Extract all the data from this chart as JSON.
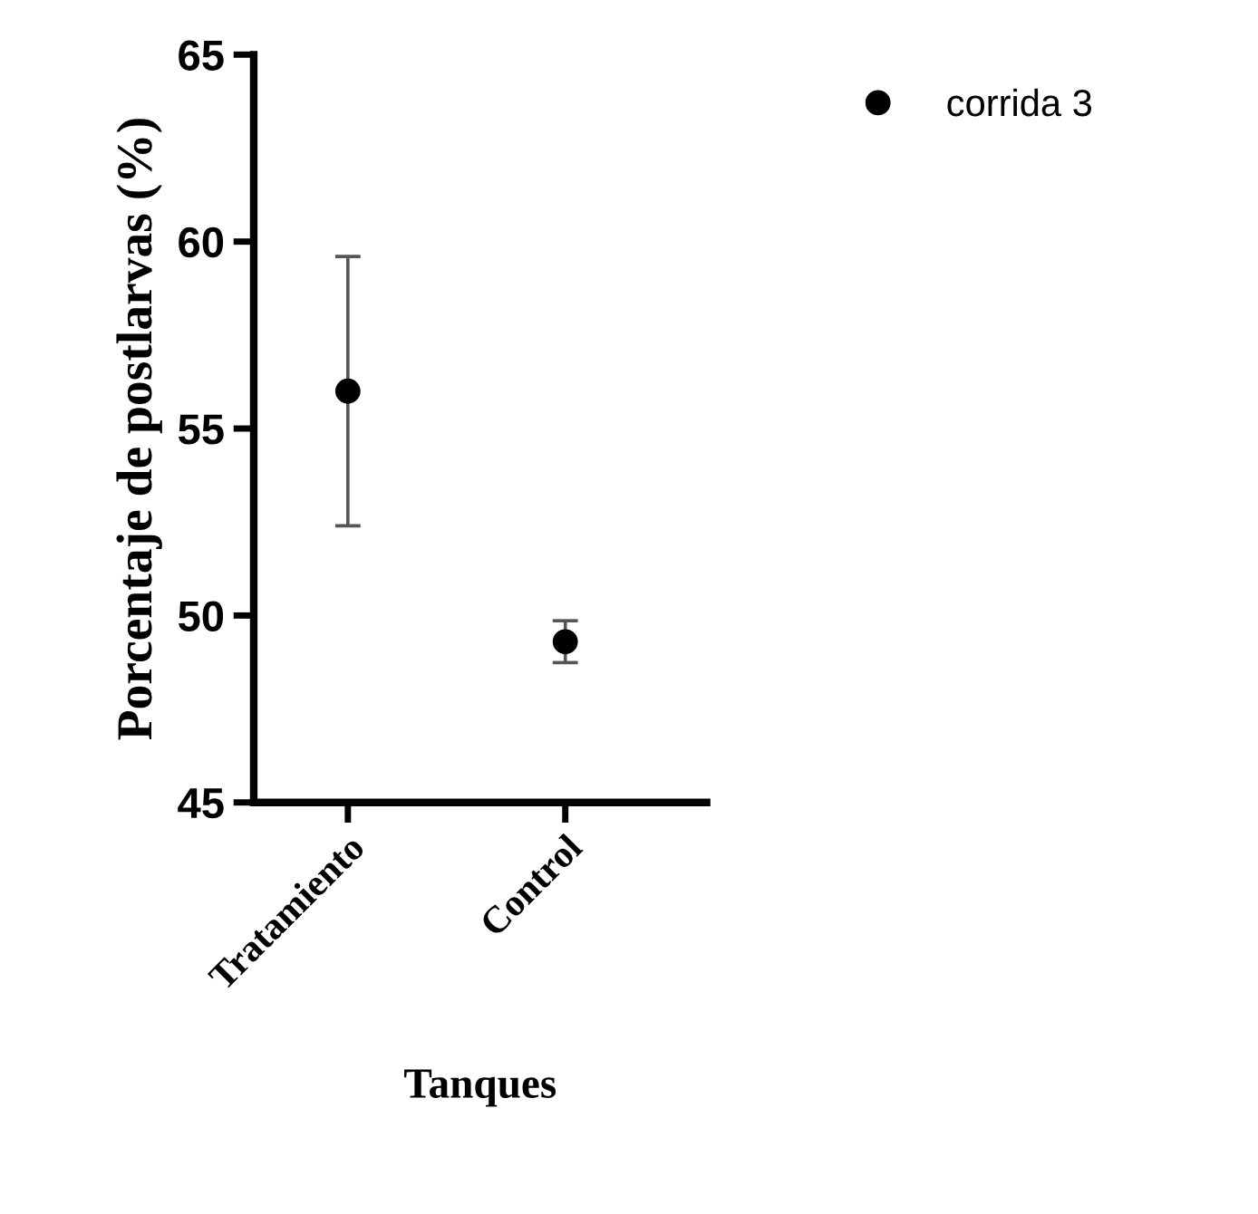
{
  "chart_data": {
    "type": "scatter",
    "xlabel": "Tanques",
    "ylabel": "Porcentaje de postlarvas (%)",
    "categories": [
      "Tratamiento",
      "Control"
    ],
    "series": [
      {
        "name": "corrida 3",
        "color": "#000000",
        "values": [
          56.0,
          49.3
        ],
        "errors": [
          3.6,
          0.56
        ]
      }
    ],
    "ylim": [
      45,
      65
    ],
    "yticks": [
      45,
      50,
      55,
      60,
      65
    ],
    "grid": false,
    "legend": "top right",
    "marker": "circle"
  }
}
